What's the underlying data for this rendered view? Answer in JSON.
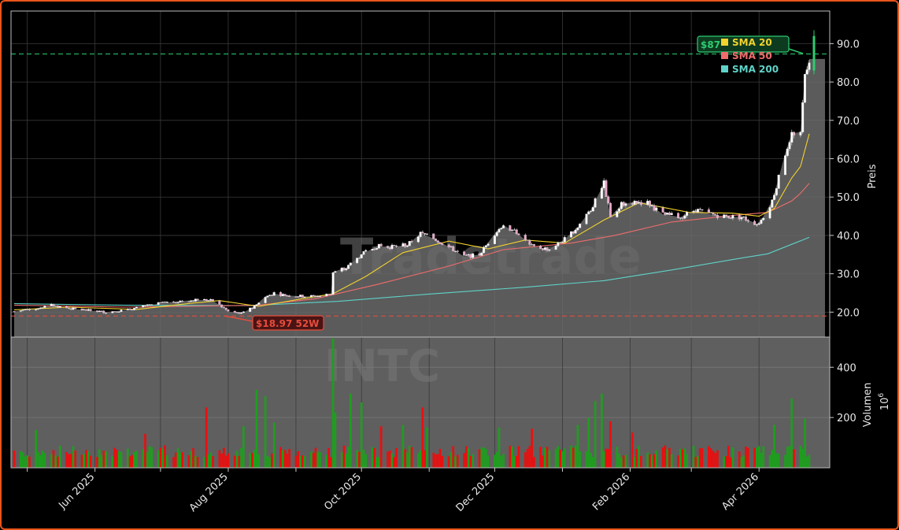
{
  "chart_data": {
    "type": "candlestick",
    "ticker": "INTC",
    "watermark_top": "Tradetrade",
    "watermark_bottom": "INTC",
    "price_axis": {
      "label": "Preis",
      "ylim": [
        13.5,
        98.5
      ],
      "ticks": [
        "20.0",
        "30.0",
        "40.0",
        "50.0",
        "60.0",
        "70.0",
        "80.0",
        "90.0"
      ]
    },
    "volume_axis": {
      "label": "Volumen",
      "unit_label": "10",
      "unit_exponent": "6",
      "ylim": [
        0,
        520
      ],
      "ticks": [
        "200",
        "400"
      ]
    },
    "date_ticks": [
      "Jun 2025",
      "Aug 2025",
      "Oct 2025",
      "Dec 2025",
      "Feb 2026",
      "Apr 2026"
    ],
    "date_range": [
      "2025-04-25",
      "2026-04-24"
    ],
    "legend": {
      "position": "top-right",
      "items": [
        {
          "label": "SMA 20",
          "color": "#f2d22e"
        },
        {
          "label": "SMA 50",
          "color": "#f06c6c"
        },
        {
          "label": "SMA 200",
          "color": "#5fd3c9"
        }
      ]
    },
    "annotations": {
      "high_label": "$87",
      "high_value": 87.3,
      "low_label": "$18.97 52W",
      "low_value": 18.97,
      "high_color": "#2ecc71",
      "low_color": "#e74c3c"
    },
    "last_price": 86.0,
    "price_path": [
      [
        "2025-04-25",
        20.2
      ],
      [
        "2025-05-05",
        21.0
      ],
      [
        "2025-05-12",
        21.8
      ],
      [
        "2025-05-20",
        21.0
      ],
      [
        "2025-05-28",
        20.5
      ],
      [
        "2025-06-06",
        20.0
      ],
      [
        "2025-06-16",
        20.6
      ],
      [
        "2025-06-24",
        21.6
      ],
      [
        "2025-07-03",
        22.5
      ],
      [
        "2025-07-11",
        22.9
      ],
      [
        "2025-07-18",
        23.2
      ],
      [
        "2025-07-25",
        23.0
      ],
      [
        "2025-08-01",
        20.2
      ],
      [
        "2025-08-07",
        19.6
      ],
      [
        "2025-08-13",
        21.5
      ],
      [
        "2025-08-18",
        24.1
      ],
      [
        "2025-08-22",
        24.8
      ],
      [
        "2025-08-29",
        24.3
      ],
      [
        "2025-09-05",
        24.1
      ],
      [
        "2025-09-12",
        24.2
      ],
      [
        "2025-09-17",
        24.8
      ],
      [
        "2025-09-18",
        30.5
      ],
      [
        "2025-09-24",
        31.6
      ],
      [
        "2025-10-01",
        35.0
      ],
      [
        "2025-10-08",
        37.2
      ],
      [
        "2025-10-15",
        37.0
      ],
      [
        "2025-10-22",
        37.5
      ],
      [
        "2025-10-28",
        40.5
      ],
      [
        "2025-11-03",
        39.2
      ],
      [
        "2025-11-10",
        37.0
      ],
      [
        "2025-11-17",
        34.5
      ],
      [
        "2025-11-24",
        35.0
      ],
      [
        "2025-12-01",
        40.5
      ],
      [
        "2025-12-05",
        42.7
      ],
      [
        "2025-12-12",
        40.2
      ],
      [
        "2025-12-19",
        37.0
      ],
      [
        "2025-12-26",
        36.4
      ],
      [
        "2026-01-02",
        39.0
      ],
      [
        "2026-01-08",
        42.2
      ],
      [
        "2026-01-14",
        46.7
      ],
      [
        "2026-01-20",
        53.5
      ],
      [
        "2026-01-23",
        45.0
      ],
      [
        "2026-01-28",
        48.0
      ],
      [
        "2026-02-03",
        48.8
      ],
      [
        "2026-02-09",
        48.5
      ],
      [
        "2026-02-16",
        45.5
      ],
      [
        "2026-02-24",
        44.8
      ],
      [
        "2026-03-03",
        46.7
      ],
      [
        "2026-03-10",
        45.5
      ],
      [
        "2026-03-17",
        44.9
      ],
      [
        "2026-03-24",
        44.8
      ],
      [
        "2026-03-31",
        43.0
      ],
      [
        "2026-04-02",
        44.0
      ],
      [
        "2026-04-07",
        49.0
      ],
      [
        "2026-04-10",
        55.0
      ],
      [
        "2026-04-13",
        61.5
      ],
      [
        "2026-04-16",
        66.5
      ],
      [
        "2026-04-20",
        67.0
      ],
      [
        "2026-04-22",
        82.0
      ],
      [
        "2026-04-24",
        86.0
      ]
    ],
    "sma20": [
      [
        "2025-04-25",
        20.6
      ],
      [
        "2025-05-20",
        21.3
      ],
      [
        "2025-06-20",
        20.7
      ],
      [
        "2025-07-15",
        22.3
      ],
      [
        "2025-07-28",
        23.0
      ],
      [
        "2025-08-15",
        21.5
      ],
      [
        "2025-09-05",
        23.6
      ],
      [
        "2025-09-18",
        24.8
      ],
      [
        "2025-10-03",
        29.3
      ],
      [
        "2025-10-20",
        35.5
      ],
      [
        "2025-11-10",
        38.5
      ],
      [
        "2025-11-28",
        36.5
      ],
      [
        "2025-12-15",
        38.8
      ],
      [
        "2026-01-02",
        38.0
      ],
      [
        "2026-01-20",
        44.0
      ],
      [
        "2026-02-05",
        48.5
      ],
      [
        "2026-02-28",
        46.0
      ],
      [
        "2026-03-20",
        45.8
      ],
      [
        "2026-04-01",
        45.0
      ],
      [
        "2026-04-08",
        47.0
      ],
      [
        "2026-04-16",
        55.0
      ],
      [
        "2026-04-20",
        58.0
      ],
      [
        "2026-04-24",
        66.5
      ]
    ],
    "sma50": [
      [
        "2025-04-25",
        21.8
      ],
      [
        "2025-06-15",
        21.3
      ],
      [
        "2025-08-15",
        21.8
      ],
      [
        "2025-09-10",
        23.5
      ],
      [
        "2025-10-08",
        27.2
      ],
      [
        "2025-11-10",
        32.0
      ],
      [
        "2025-12-05",
        36.3
      ],
      [
        "2026-01-05",
        38.0
      ],
      [
        "2026-01-25",
        40.0
      ],
      [
        "2026-02-20",
        43.5
      ],
      [
        "2026-03-20",
        45.2
      ],
      [
        "2026-04-05",
        46.0
      ],
      [
        "2026-04-16",
        49.0
      ],
      [
        "2026-04-20",
        51.0
      ],
      [
        "2026-04-24",
        53.6
      ]
    ],
    "sma200": [
      [
        "2025-04-25",
        22.2
      ],
      [
        "2025-06-15",
        21.8
      ],
      [
        "2025-08-10",
        21.7
      ],
      [
        "2025-09-20",
        22.8
      ],
      [
        "2025-11-01",
        24.7
      ],
      [
        "2025-12-15",
        26.5
      ],
      [
        "2026-01-20",
        28.2
      ],
      [
        "2026-02-20",
        31.0
      ],
      [
        "2026-03-25",
        34.2
      ],
      [
        "2026-04-05",
        35.2
      ],
      [
        "2026-04-24",
        39.5
      ]
    ],
    "volume_spikes": [
      [
        "2025-05-05",
        150
      ],
      [
        "2025-06-08",
        170
      ],
      [
        "2025-06-24",
        135
      ],
      [
        "2025-07-22",
        240
      ],
      [
        "2025-08-08",
        165
      ],
      [
        "2025-08-14",
        310
      ],
      [
        "2025-08-18",
        285
      ],
      [
        "2025-08-22",
        180
      ],
      [
        "2025-09-18",
        515
      ],
      [
        "2025-09-19",
        220
      ],
      [
        "2025-09-26",
        295
      ],
      [
        "2025-10-01",
        260
      ],
      [
        "2025-10-10",
        165
      ],
      [
        "2025-10-20",
        170
      ],
      [
        "2025-10-29",
        240
      ],
      [
        "2025-10-31",
        160
      ],
      [
        "2025-12-03",
        160
      ],
      [
        "2025-12-18",
        155
      ],
      [
        "2026-01-08",
        170
      ],
      [
        "2026-01-13",
        200
      ],
      [
        "2026-01-16",
        265
      ],
      [
        "2026-01-19",
        295
      ],
      [
        "2026-01-23",
        185
      ],
      [
        "2026-02-02",
        140
      ],
      [
        "2026-04-08",
        170
      ],
      [
        "2026-04-16",
        275
      ],
      [
        "2026-04-22",
        195
      ]
    ],
    "volume_base": 60
  }
}
